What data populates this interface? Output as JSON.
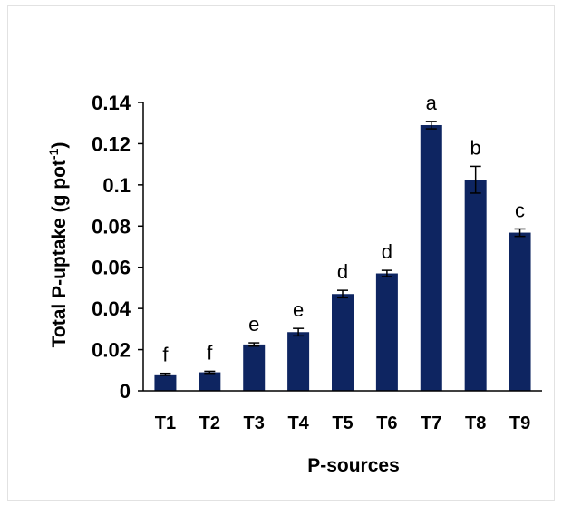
{
  "chart_data": {
    "type": "bar",
    "title": "",
    "xlabel": "P-sources",
    "ylabel": "Total P-uptake (g pot",
    "ylabel_sup": "-1",
    "ylabel_close": ")",
    "categories": [
      "T1",
      "T2",
      "T3",
      "T4",
      "T5",
      "T6",
      "T7",
      "T8",
      "T9"
    ],
    "values": [
      0.008,
      0.009,
      0.0225,
      0.0285,
      0.047,
      0.057,
      0.129,
      0.1025,
      0.0768
    ],
    "errors": [
      0.0005,
      0.0005,
      0.0008,
      0.0018,
      0.0018,
      0.0015,
      0.0018,
      0.0065,
      0.0018
    ],
    "significance_letters": [
      "f",
      "f",
      "e",
      "e",
      "d",
      "d",
      "a",
      "b",
      "c"
    ],
    "ylim": [
      0,
      0.14
    ],
    "yticks": [
      0,
      0.02,
      0.04,
      0.06,
      0.08,
      0.1,
      0.12,
      0.14
    ],
    "ytick_labels": [
      "0",
      "0.02",
      "0.04",
      "0.06",
      "0.08",
      "0.1",
      "0.12",
      "0.14"
    ],
    "grid": false,
    "legend": "none",
    "bar_color": "#0e2561"
  }
}
